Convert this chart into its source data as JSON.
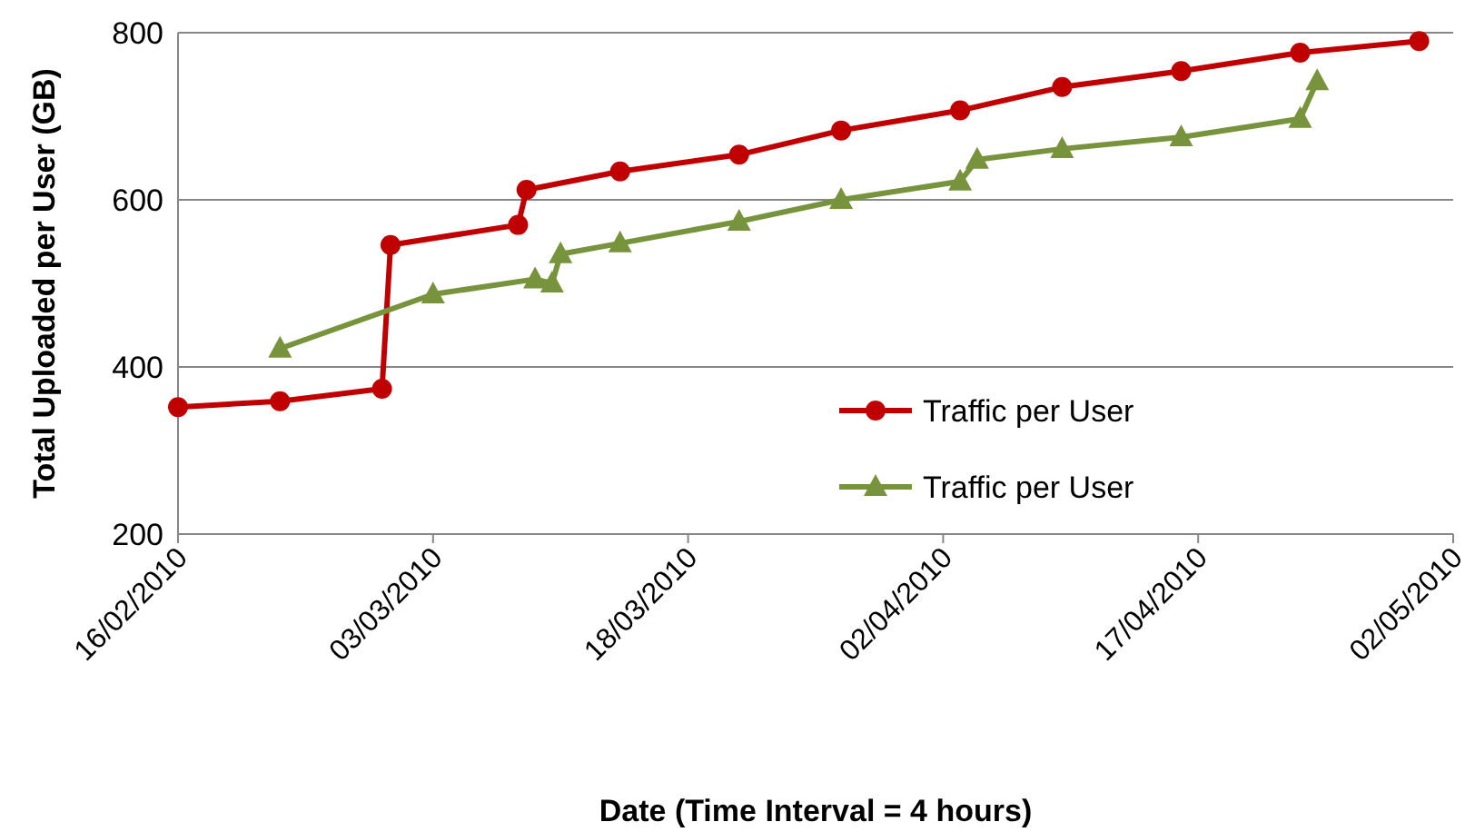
{
  "chart_data": {
    "type": "line",
    "xlabel": "Date (Time Interval = 4 hours)",
    "ylabel": "Total Uploaded per User (GB)",
    "xlim": [
      "2010-02-16",
      "2010-05-02"
    ],
    "xticks": [
      {
        "value": "2010-02-16",
        "label": "16/02/2010"
      },
      {
        "value": "2010-03-03",
        "label": "03/03/2010"
      },
      {
        "value": "2010-03-18",
        "label": "18/03/2010"
      },
      {
        "value": "2010-04-02",
        "label": "02/04/2010"
      },
      {
        "value": "2010-04-17",
        "label": "17/04/2010"
      },
      {
        "value": "2010-05-02",
        "label": "02/05/2010"
      }
    ],
    "ylim": [
      200,
      800
    ],
    "yticks": [
      200,
      400,
      600,
      800
    ],
    "grid": "y",
    "legend": "right",
    "line_style": "solid",
    "series": [
      {
        "name": "Traffic per User",
        "color": "#c00000",
        "marker": "circle",
        "x": [
          "2010-02-16",
          "2010-02-22",
          "2010-02-28",
          "2010-02-28T12:00",
          "2010-03-08",
          "2010-03-08T12:00",
          "2010-03-14",
          "2010-03-21",
          "2010-03-27",
          "2010-04-03",
          "2010-04-09",
          "2010-04-16",
          "2010-04-23",
          "2010-04-30"
        ],
        "values": [
          352,
          359,
          374,
          546,
          570,
          612,
          634,
          654,
          683,
          707,
          735,
          754,
          776,
          790
        ]
      },
      {
        "name": "Traffic per User",
        "color": "#77933c",
        "marker": "triangle",
        "x": [
          "2010-02-22",
          "2010-03-03",
          "2010-03-09",
          "2010-03-10",
          "2010-03-10T12:00",
          "2010-03-14",
          "2010-03-21",
          "2010-03-27",
          "2010-04-03",
          "2010-04-04",
          "2010-04-09",
          "2010-04-16",
          "2010-04-23",
          "2010-04-24"
        ],
        "values": [
          422,
          487,
          505,
          500,
          535,
          548,
          574,
          600,
          622,
          648,
          661,
          675,
          697,
          742
        ]
      }
    ]
  }
}
